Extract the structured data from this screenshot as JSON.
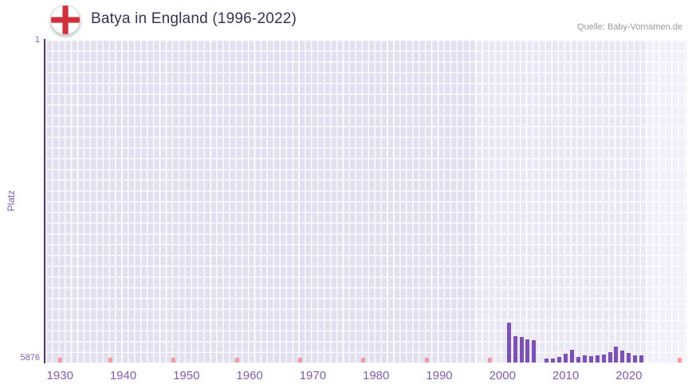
{
  "header": {
    "title": "Batya in England (1996-2022)",
    "source": "Quelle: Baby-Vornamen.de",
    "flag": "england-flag-icon"
  },
  "chart_data": {
    "type": "bar",
    "title": "Batya in England (1996-2022)",
    "xlabel": "",
    "ylabel": "Platz",
    "y_axis": {
      "top_tick_label": "1",
      "bottom_tick_label": "5876",
      "min": 1,
      "max": 5876,
      "inverted": true
    },
    "x_axis": {
      "tick_labels": [
        1930,
        1940,
        1950,
        1960,
        1970,
        1980,
        1990,
        2000,
        2010,
        2020
      ],
      "range": [
        1927.7,
        2029.1
      ]
    },
    "grid": true,
    "legend": "none",
    "highlight_bands": [
      {
        "from": 1995.5,
        "to": 2022.5
      },
      {
        "from": 2022.5,
        "to": 2029.1
      }
    ],
    "no_rank_marker_years": [
      1930,
      1938,
      1948,
      1958,
      1968,
      1978,
      1988,
      1998,
      2028
    ],
    "series": [
      {
        "name": "Platz",
        "points": [
          {
            "year": 2001,
            "rank": 5150
          },
          {
            "year": 2002,
            "rank": 5390
          },
          {
            "year": 2003,
            "rank": 5410
          },
          {
            "year": 2004,
            "rank": 5450
          },
          {
            "year": 2005,
            "rank": 5470
          },
          {
            "year": 2007,
            "rank": 5810
          },
          {
            "year": 2008,
            "rank": 5800
          },
          {
            "year": 2009,
            "rank": 5780
          },
          {
            "year": 2010,
            "rank": 5720
          },
          {
            "year": 2011,
            "rank": 5640
          },
          {
            "year": 2012,
            "rank": 5770
          },
          {
            "year": 2013,
            "rank": 5740
          },
          {
            "year": 2014,
            "rank": 5760
          },
          {
            "year": 2015,
            "rank": 5750
          },
          {
            "year": 2016,
            "rank": 5730
          },
          {
            "year": 2017,
            "rank": 5690
          },
          {
            "year": 2018,
            "rank": 5590
          },
          {
            "year": 2019,
            "rank": 5660
          },
          {
            "year": 2020,
            "rank": 5700
          },
          {
            "year": 2021,
            "rank": 5740
          },
          {
            "year": 2022,
            "rank": 5750
          }
        ]
      }
    ],
    "colors": {
      "bar": "#7b51b3",
      "no_rank_marker": "#f49ba1",
      "plot_background": "#e2dff0",
      "band_background": "#eae7f5",
      "band_background_light": "#f1effa",
      "axis_line": "#4a3870",
      "tick_text": "#7a5fae",
      "title_text": "#3a3153",
      "source_text": "#9a9a9a",
      "flag_cross_red": "#d0313d"
    }
  }
}
